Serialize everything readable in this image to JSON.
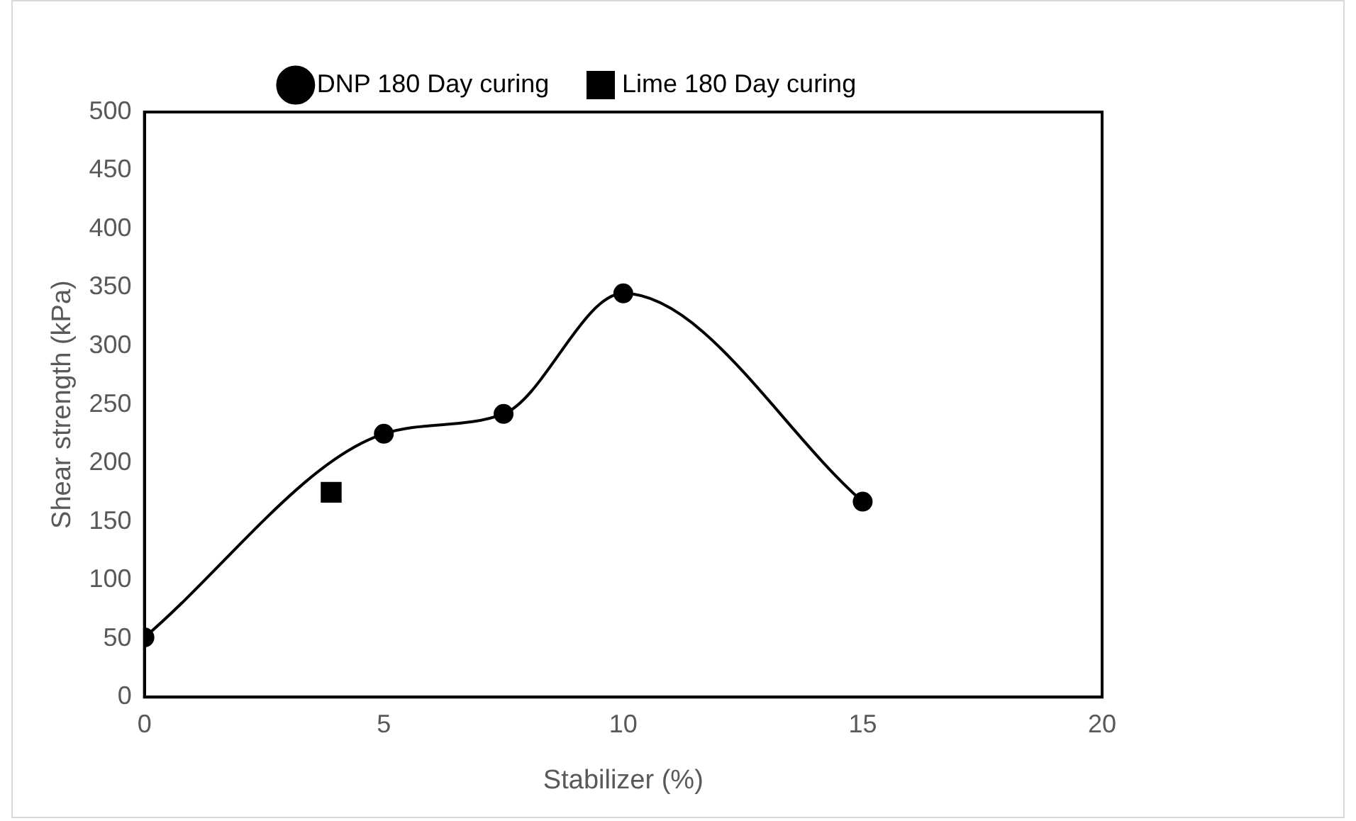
{
  "chart_data": {
    "type": "line",
    "xlabel": "Stabilizer (%)",
    "ylabel": "Shear strength (kPa)",
    "xlim": [
      0,
      20
    ],
    "xticks": [
      0,
      5,
      10,
      15,
      20
    ],
    "ylim": [
      0,
      500
    ],
    "yticks": [
      0,
      50,
      100,
      150,
      200,
      250,
      300,
      350,
      400,
      450,
      500
    ],
    "grid": false,
    "legend": "top",
    "marker": "circle",
    "series": [
      {
        "name": "DNP 180 Day curing",
        "color": "#000000",
        "x": [
          0,
          5,
          7.5,
          10,
          15
        ],
        "values": [
          51,
          225,
          242,
          345,
          167
        ]
      },
      {
        "name": "Lime 180 Day curing",
        "type": "scatter",
        "marker": "square",
        "color": "#000000",
        "x": [
          3.9
        ],
        "values": [
          175
        ]
      }
    ]
  }
}
